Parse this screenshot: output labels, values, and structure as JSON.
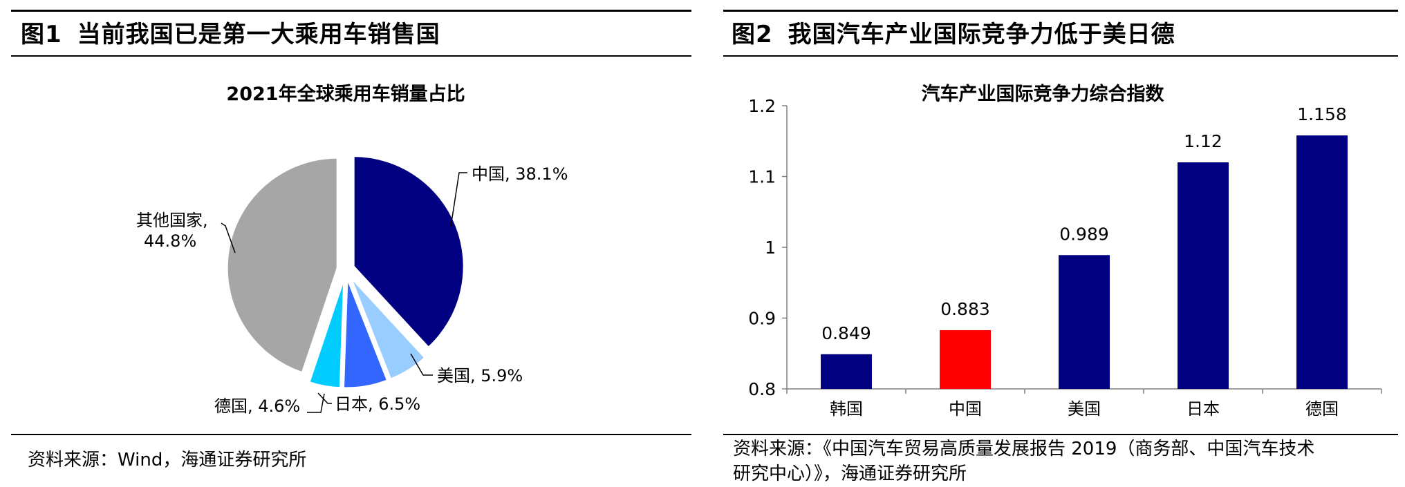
{
  "panels": {
    "left": {
      "fig_no": "图1",
      "heading": "当前我国已是第一大乘用车销售国",
      "source": "资料来源：Wind，海通证券研究所"
    },
    "right": {
      "fig_no": "图2",
      "heading": "我国汽车产业国际竞争力低于美日德",
      "source_line1": "资料来源：《中国汽车贸易高质量发展报告 2019（商务部、中国汽车技术",
      "source_line2": "研究中心）》，海通证券研究所"
    }
  },
  "chart_data": [
    {
      "type": "pie",
      "title": "2021年全球乘用车销量占比",
      "slices": [
        {
          "name": "中国",
          "value": 38.1,
          "label": "中国, 38.1%",
          "color": "#000080"
        },
        {
          "name": "美国",
          "value": 5.9,
          "label": "美国, 5.9%",
          "color": "#99CCFF"
        },
        {
          "name": "日本",
          "value": 6.5,
          "label": "日本, 6.5%",
          "color": "#3366FF"
        },
        {
          "name": "德国",
          "value": 4.6,
          "label": "德国, 4.6%",
          "color": "#00CCFF"
        },
        {
          "name": "其他国家",
          "value": 44.8,
          "label_line1": "其他国家,",
          "label_line2": "44.8%",
          "color": "#A6A6A6"
        }
      ]
    },
    {
      "type": "bar",
      "title": "汽车产业国际竞争力综合指数",
      "categories": [
        "韩国",
        "中国",
        "美国",
        "日本",
        "德国"
      ],
      "values": [
        0.849,
        0.883,
        0.989,
        1.12,
        1.158
      ],
      "value_labels": [
        "0.849",
        "0.883",
        "0.989",
        "1.12",
        "1.158"
      ],
      "colors": [
        "#000080",
        "#FF0000",
        "#000080",
        "#000080",
        "#000080"
      ],
      "ylim": [
        0.8,
        1.2
      ],
      "yticks": [
        0.8,
        0.9,
        1.0,
        1.1,
        1.2
      ],
      "ytick_labels": [
        "0.8",
        "0.9",
        "1",
        "1.1",
        "1.2"
      ],
      "xlabel": "",
      "ylabel": "",
      "grid": false
    }
  ]
}
